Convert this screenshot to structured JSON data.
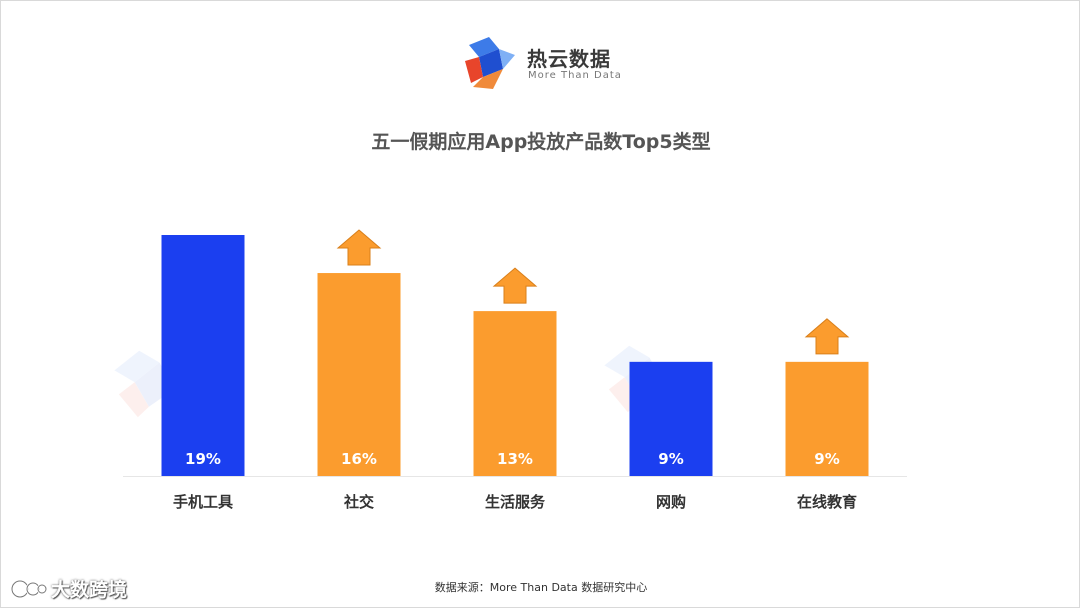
{
  "brand": {
    "name": "热云数据",
    "tagline": "More Than Data",
    "colors": {
      "blue": "#2f63e8",
      "red": "#e8452b",
      "orange": "#f5a03a"
    }
  },
  "source": "数据来源：More Than Data 数据研究中心",
  "corner_badge": {
    "text": "大数跨境",
    "icon": "camera-face-icon"
  },
  "chart_data": {
    "type": "bar",
    "title": "五一假期应用App投放产品数Top5类型",
    "categories": [
      "手机工具",
      "社交",
      "生活服务",
      "网购",
      "在线教育"
    ],
    "values": [
      19,
      16,
      13,
      9,
      9
    ],
    "value_labels": [
      "19%",
      "16%",
      "13%",
      "9%",
      "9%"
    ],
    "increase_arrow": [
      false,
      true,
      true,
      false,
      true
    ],
    "bar_colors": [
      "#1b3ff0",
      "#fb9c2e",
      "#fb9c2e",
      "#1b3ff0",
      "#fb9c2e"
    ],
    "arrow_color": "#fb9c2e",
    "ylim": [
      0,
      19
    ],
    "grid": false,
    "legend": "none",
    "xlabel": "",
    "ylabel": ""
  }
}
